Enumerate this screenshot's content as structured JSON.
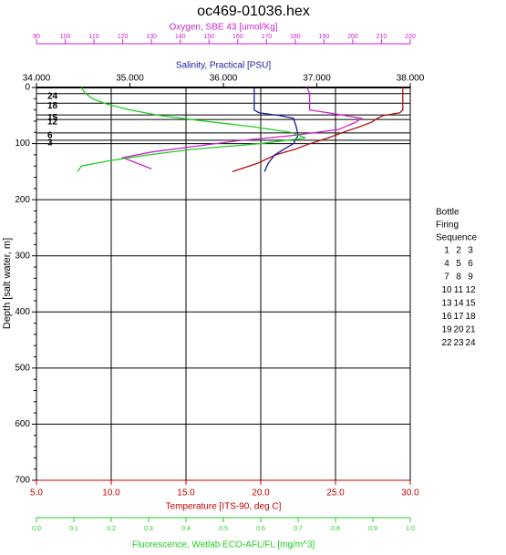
{
  "chart_data": {
    "type": "profile",
    "title": "oc469-01036.hex",
    "depth_axis": {
      "label": "Depth [salt water, m]",
      "lim": [
        0,
        700
      ],
      "ticks": [
        0,
        100,
        200,
        300,
        400,
        500,
        600,
        700
      ]
    },
    "x_axes": [
      {
        "label": "Temperature [ITS-90, deg C]",
        "color": "#c00000",
        "lim": [
          5,
          30
        ],
        "ticks": [
          {
            "value": 5,
            "label": "5.0"
          },
          {
            "value": 10,
            "label": "10.0"
          },
          {
            "value": 15,
            "label": "15.0"
          },
          {
            "value": 20,
            "label": "20.0"
          },
          {
            "value": 25,
            "label": "25.0"
          },
          {
            "value": 30,
            "label": "30.0"
          }
        ]
      },
      {
        "label": "Fluorescence, Wetlab ECO-AFL/FL [mg/m^3]",
        "color": "#22cc22",
        "lim": [
          0,
          1
        ],
        "ticks": [
          {
            "value": 0,
            "label": "0.0"
          },
          0.1,
          0.2,
          0.3,
          0.4,
          0.5,
          0.6,
          0.7,
          0.8,
          0.9,
          {
            "value": 1,
            "label": "1.0"
          }
        ]
      },
      {
        "label": "Salinity, Practical [PSU]",
        "color": "#1a1aa0",
        "lim": [
          34,
          38
        ],
        "ticks": [
          {
            "value": 34,
            "label": "34.000"
          },
          {
            "value": 35,
            "label": "35.000"
          },
          {
            "value": 36,
            "label": "36.000"
          },
          {
            "value": 37,
            "label": "37.000"
          },
          {
            "value": 38,
            "label": "38.000"
          }
        ]
      },
      {
        "label": "Oxygen, SBE 43 [umol/Kg]",
        "color": "#cc22cc",
        "lim": [
          90,
          220
        ],
        "ticks": [
          90,
          100,
          110,
          120,
          130,
          140,
          150,
          160,
          170,
          180,
          190,
          200,
          210,
          220
        ]
      }
    ],
    "series": [
      {
        "axis": 0,
        "color": "#b01010",
        "depth": [
          0,
          40,
          45,
          50,
          55,
          62,
          70,
          80,
          90,
          100,
          110,
          120,
          135,
          150
        ],
        "values": [
          29.5,
          29.5,
          29.3,
          28.2,
          27.8,
          27.4,
          26.6,
          25.5,
          24.5,
          23.3,
          22.3,
          21.0,
          19.8,
          18.1
        ]
      },
      {
        "axis": 2,
        "color": "#1a1aa0",
        "depth": [
          0,
          40,
          45,
          50,
          55,
          70,
          85,
          100,
          110,
          120,
          135,
          150
        ],
        "values": [
          36.33,
          36.33,
          36.38,
          36.6,
          36.75,
          36.78,
          36.8,
          36.75,
          36.65,
          36.55,
          36.48,
          36.44
        ]
      },
      {
        "axis": 3,
        "color": "#cc22cc",
        "depth": [
          0,
          10,
          40,
          48,
          55,
          62,
          75,
          85,
          95,
          105,
          115,
          125,
          135,
          145
        ],
        "values": [
          184,
          185,
          185,
          195,
          203,
          201,
          195,
          180,
          160,
          145,
          130,
          120,
          125,
          130
        ]
      },
      {
        "axis": 1,
        "color": "#22cc22",
        "depth": [
          0,
          10,
          20,
          30,
          40,
          50,
          60,
          70,
          80,
          90,
          100,
          110,
          120,
          130,
          140,
          150
        ],
        "values": [
          0.12,
          0.13,
          0.15,
          0.19,
          0.25,
          0.33,
          0.45,
          0.58,
          0.68,
          0.72,
          0.6,
          0.42,
          0.3,
          0.2,
          0.12,
          0.11
        ]
      }
    ],
    "bottles": [
      {
        "depth": 11,
        "label": "24"
      },
      {
        "depth": 28,
        "label": "18"
      },
      {
        "depth": 49,
        "label": "15"
      },
      {
        "depth": 57,
        "label": "12"
      },
      {
        "depth": 81,
        "label": "6"
      },
      {
        "depth": 94,
        "label": "3"
      }
    ],
    "legend_title": [
      "Bottle",
      "Firing",
      "Sequence"
    ],
    "bottle_sequence": [
      [
        1,
        2,
        3
      ],
      [
        4,
        5,
        6
      ],
      [
        7,
        8,
        9
      ],
      [
        10,
        11,
        12
      ],
      [
        13,
        14,
        15
      ],
      [
        16,
        17,
        18
      ],
      [
        19,
        20,
        21
      ],
      [
        22,
        23,
        24
      ]
    ]
  }
}
